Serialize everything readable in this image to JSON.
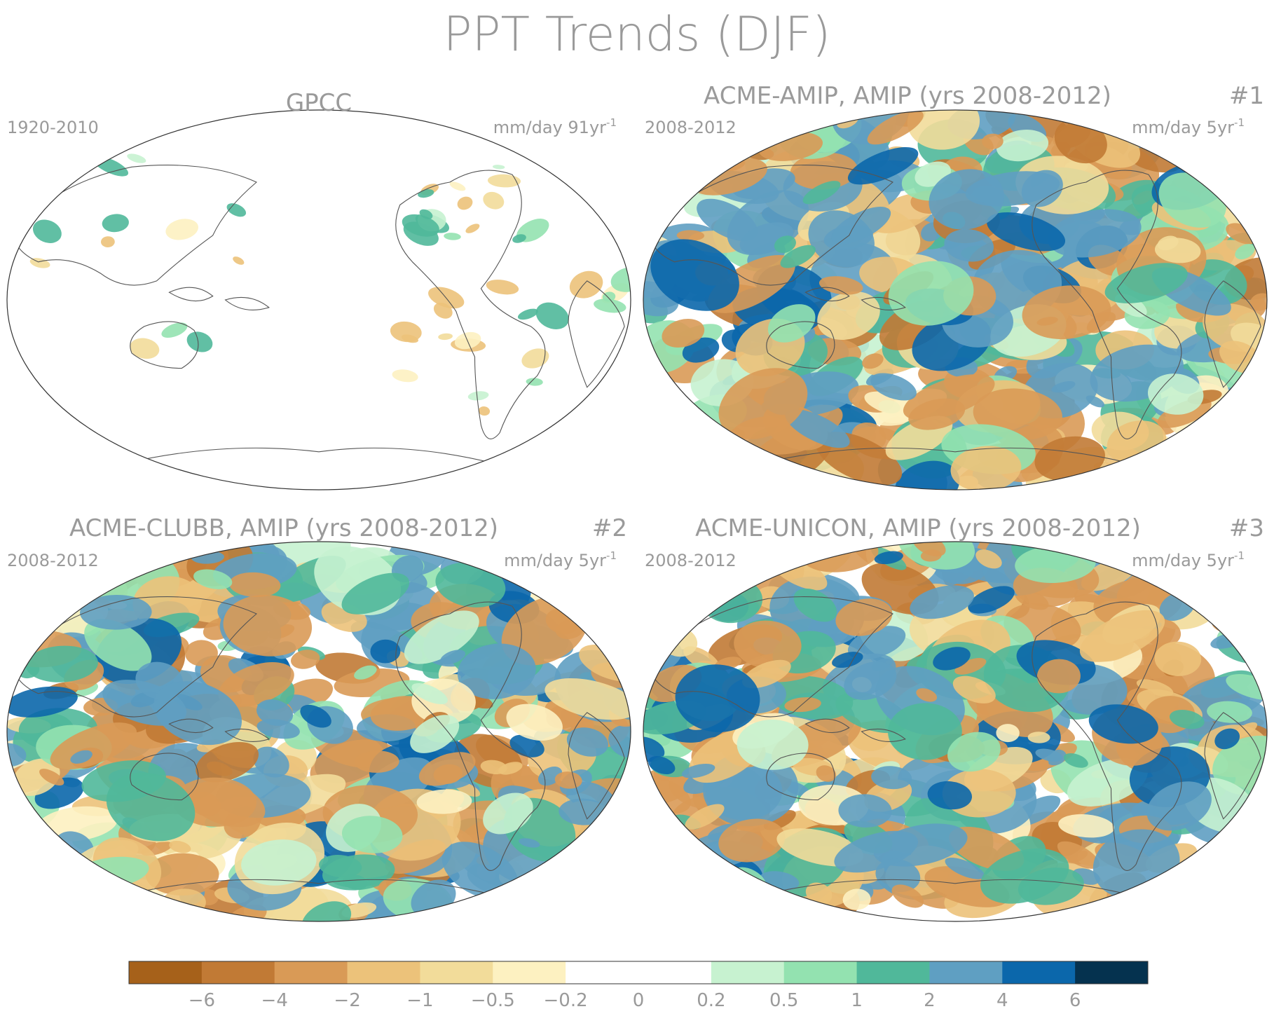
{
  "title": "PPT Trends (DJF)",
  "panels": [
    {
      "title": "GPCC",
      "period": "1920-2010",
      "units": "mm/day 91yr",
      "units_exp": "-1",
      "number": "",
      "regime": "gpcc"
    },
    {
      "title": "ACME-AMIP, AMIP (yrs 2008-2012)",
      "period": "2008-2012",
      "units": "mm/day 5yr",
      "units_exp": "-1",
      "number": "#1",
      "regime": "amip1"
    },
    {
      "title": "ACME-CLUBB, AMIP (yrs 2008-2012)",
      "period": "2008-2012",
      "units": "mm/day 5yr",
      "units_exp": "-1",
      "number": "#2",
      "regime": "clubb"
    },
    {
      "title": "ACME-UNICON, AMIP (yrs 2008-2012)",
      "period": "2008-2012",
      "units": "mm/day 5yr",
      "units_exp": "-1",
      "number": "#3",
      "regime": "unicon"
    }
  ],
  "colorbar": {
    "ticks": [
      "-6",
      "-4",
      "-2",
      "-1",
      "-0.5",
      "-0.2",
      "0",
      "0.2",
      "0.5",
      "1",
      "2",
      "4",
      "6"
    ],
    "colors": [
      "#a6611a",
      "#c17a35",
      "#d99a56",
      "#ecc27a",
      "#f2dc9a",
      "#fdf1c1",
      "#ffffff",
      "#ffffff",
      "#c7f2d0",
      "#93e2b0",
      "#50b89a",
      "#5f9fc2",
      "#0b67ab",
      "#05324f"
    ]
  }
}
